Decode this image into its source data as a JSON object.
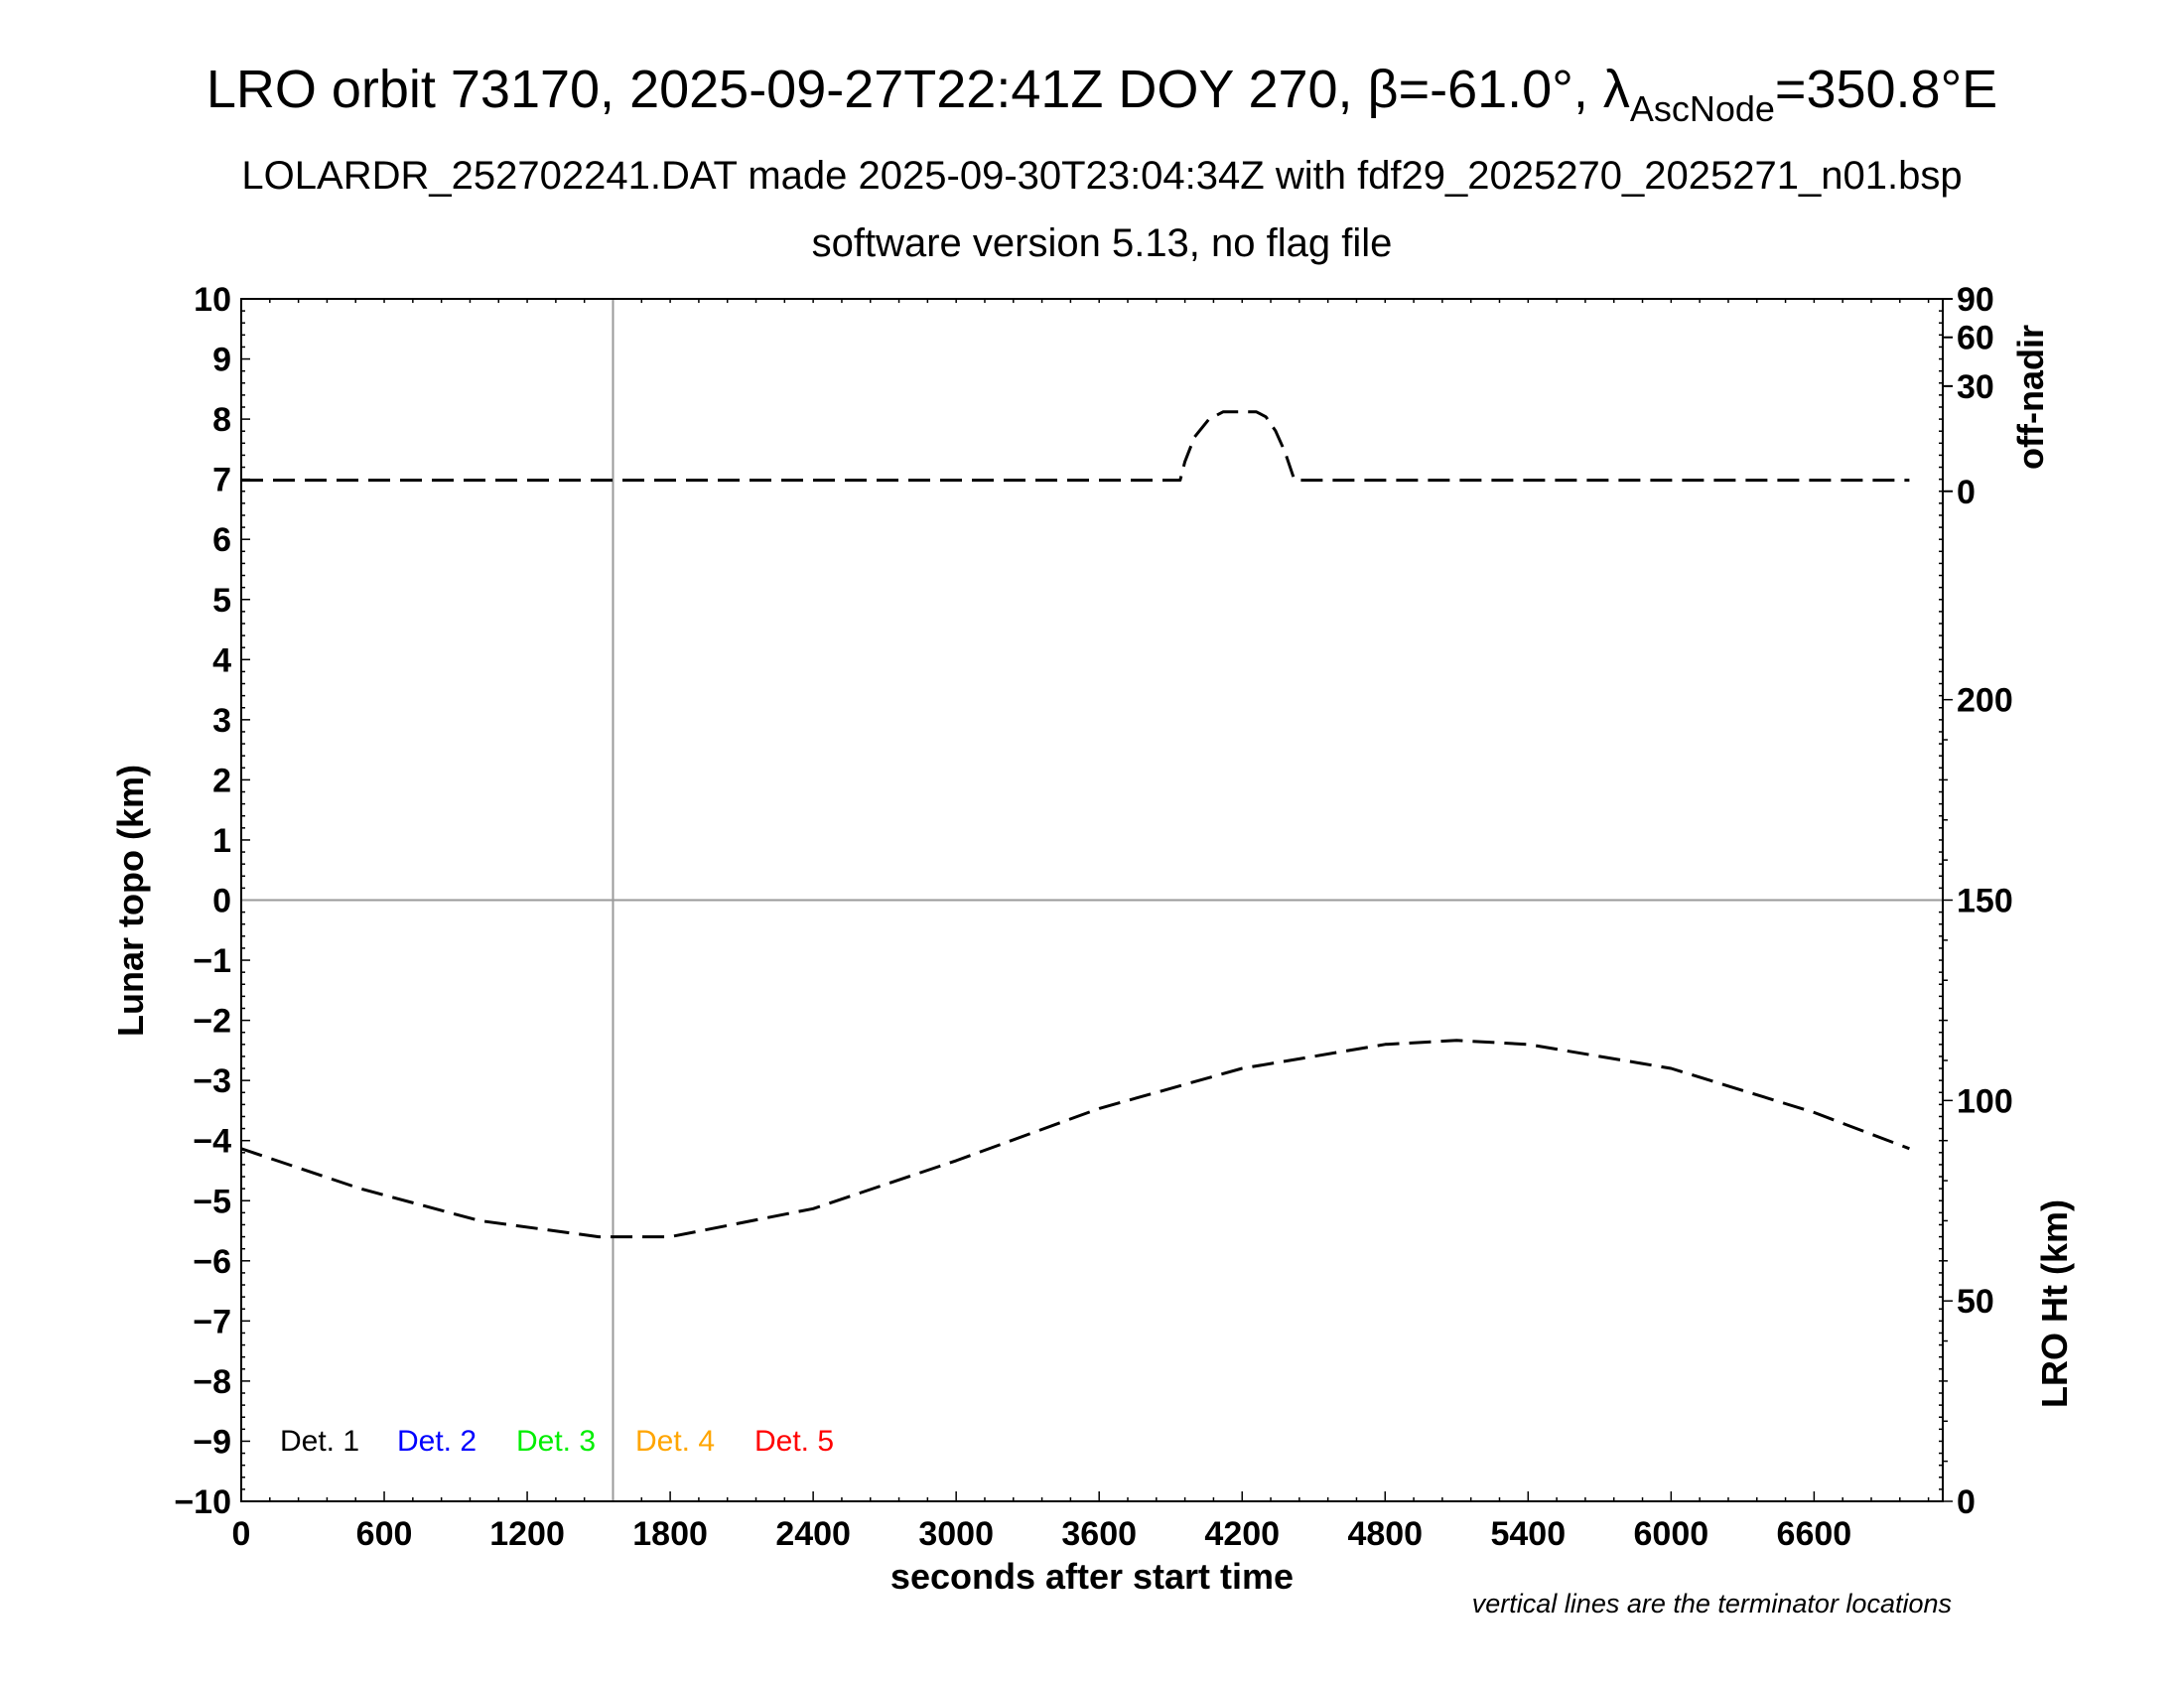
{
  "title": {
    "main": "LRO orbit 73170, 2025-09-27T22:41Z DOY 270, β=-61.0°, λ",
    "sub_script": "AscNode",
    "tail": "=350.8°E"
  },
  "subtitle1": "LOLARDR_252702241.DAT made 2025-09-30T23:04:34Z with fdf29_2025270_2025271_n01.bsp",
  "subtitle2": "software version 5.13, no flag file",
  "footnote": "vertical lines are the terminator locations",
  "chart_data": {
    "type": "line",
    "xlabel": "seconds after start time",
    "ylabel": "Lunar topo (km)",
    "xlim": [
      0,
      7140
    ],
    "ylim": [
      -10,
      10
    ],
    "x_ticks": [
      0,
      600,
      1200,
      1800,
      2400,
      3000,
      3600,
      4200,
      4800,
      5400,
      6000,
      6600
    ],
    "y_ticks": [
      10,
      9,
      8,
      7,
      6,
      5,
      4,
      3,
      2,
      1,
      0,
      -1,
      -2,
      -3,
      -4,
      -5,
      -6,
      -7,
      -8,
      -9,
      -10
    ],
    "y_tick_labels": [
      "10",
      "9",
      "8",
      "7",
      "6",
      "5",
      "4",
      "3",
      "2",
      "1",
      "0",
      "−1",
      "−2",
      "−3",
      "−4",
      "−5",
      "−6",
      "−7",
      "−8",
      "−9",
      "−10"
    ],
    "zero_line": 0,
    "terminators": [
      1560
    ],
    "grid": false,
    "right_axis_offnadir": {
      "label": "off-nadir",
      "ticks": [
        0,
        30,
        60,
        90
      ],
      "tick_labels": [
        "0",
        "30",
        "60",
        "90"
      ]
    },
    "right_axis_height": {
      "label": "LRO Ht (km)",
      "range": [
        0,
        300
      ],
      "ticks": [
        0,
        50,
        100,
        150,
        200
      ],
      "tick_labels": [
        "0",
        "50",
        "100",
        "150",
        "200"
      ]
    },
    "legend": [
      {
        "label": "Det. 1",
        "color": "#000000"
      },
      {
        "label": "Det. 2",
        "color": "#0000ff"
      },
      {
        "label": "Det. 3",
        "color": "#00ee00"
      },
      {
        "label": "Det. 4",
        "color": "#ffa500"
      },
      {
        "label": "Det. 5",
        "color": "#ff0000"
      }
    ],
    "series": [
      {
        "axis": "offnadir",
        "x": [
          0,
          1000,
          2000,
          3000,
          3940,
          3960,
          4000,
          4060,
          4120,
          4200,
          4260,
          4300,
          4340,
          4380,
          4420,
          5000,
          6000,
          7000
        ],
        "values": [
          0.5,
          0.5,
          0.5,
          0.5,
          0.5,
          3,
          9,
          15,
          18,
          18,
          18,
          16,
          11,
          5,
          0.5,
          0.5,
          0.5,
          0.5
        ]
      },
      {
        "axis": "height",
        "x": [
          0,
          500,
          1000,
          1500,
          1800,
          2400,
          3000,
          3600,
          4200,
          4800,
          5100,
          5400,
          6000,
          6600,
          7000
        ],
        "values": [
          88,
          78,
          70,
          66,
          66,
          73,
          85,
          98,
          108,
          114,
          115,
          114,
          108,
          97,
          88
        ]
      }
    ]
  }
}
